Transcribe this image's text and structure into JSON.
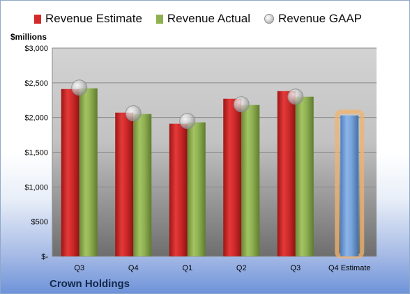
{
  "chart_data": {
    "type": "bar",
    "ylabel": "$millions",
    "footer": "Crown Holdings",
    "categories": [
      "Q3",
      "Q4",
      "Q1",
      "Q2",
      "Q3",
      "Q4 Estimate"
    ],
    "ylim": [
      0,
      3000
    ],
    "yticks": [
      {
        "value": 0,
        "label": "$-"
      },
      {
        "value": 500,
        "label": "$500"
      },
      {
        "value": 1000,
        "label": "$1,000"
      },
      {
        "value": 1500,
        "label": "$1,500"
      },
      {
        "value": 2000,
        "label": "$2,000"
      },
      {
        "value": 2500,
        "label": "$2,500"
      },
      {
        "value": 3000,
        "label": "$3,000"
      }
    ],
    "grid": true,
    "legend_position": "top",
    "series": [
      {
        "name": "Revenue Estimate",
        "kind": "bar",
        "color": "#d42a2a",
        "values": [
          2410,
          2070,
          1910,
          2270,
          2380,
          null
        ]
      },
      {
        "name": "Revenue Actual",
        "kind": "bar",
        "color": "#8fb050",
        "values": [
          2420,
          2050,
          1930,
          2180,
          2300,
          null
        ]
      },
      {
        "name": "Revenue GAAP",
        "kind": "marker",
        "color": "#b0b0b0",
        "values": [
          2430,
          2060,
          1950,
          2190,
          2300,
          null
        ]
      },
      {
        "name": "Q4 Estimate",
        "kind": "bar",
        "color": "#6f9fd8",
        "highlight": "#f2b36a",
        "values": [
          null,
          null,
          null,
          null,
          null,
          2030
        ]
      }
    ]
  }
}
